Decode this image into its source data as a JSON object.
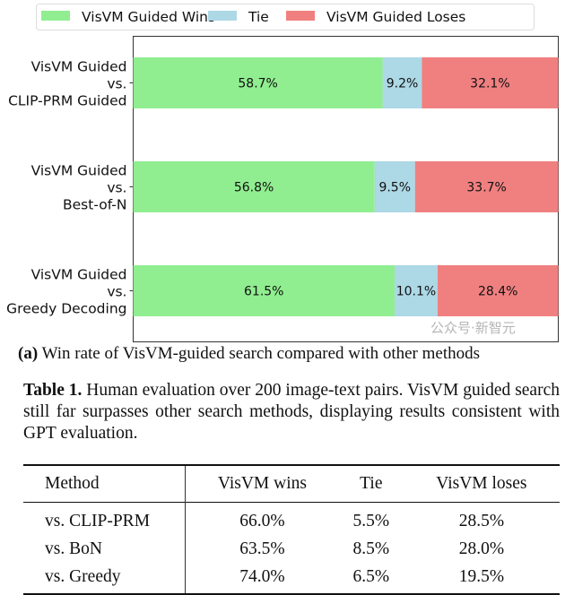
{
  "chart_data": {
    "type": "bar",
    "orientation": "horizontal",
    "stacked": true,
    "categories": [
      "VisVM Guided\nvs.\nCLIP-PRM Guided",
      "VisVM Guided\nvs.\nBest-of-N",
      "VisVM Guided\nvs.\nGreedy Decoding"
    ],
    "series": [
      {
        "name": "VisVM Guided Wins",
        "color": "#90ee90",
        "values": [
          58.7,
          56.8,
          61.5
        ],
        "labels": [
          "58.7%",
          "56.8%",
          "61.5%"
        ]
      },
      {
        "name": "Tie",
        "color": "#add8e6",
        "values": [
          9.2,
          9.5,
          10.1
        ],
        "labels": [
          "9.2%",
          "9.5%",
          "10.1%"
        ]
      },
      {
        "name": "VisVM Guided Loses",
        "color": "#f08080",
        "values": [
          32.1,
          33.7,
          28.4
        ],
        "labels": [
          "32.1%",
          "33.7%",
          "28.4%"
        ]
      }
    ],
    "xlim": [
      0,
      100
    ],
    "legend_position": "top",
    "grid": false
  },
  "caption_a": {
    "label": "(a)",
    "text": " Win rate of VisVM-guided search compared with other methods"
  },
  "table_caption": {
    "label": "Table 1.",
    "text": "  Human evaluation over 200 image-text pairs.  VisVM guided search still far surpasses other search methods, displaying results consistent with GPT evaluation."
  },
  "table": {
    "headers": [
      "Method",
      "VisVM wins",
      "Tie",
      "VisVM loses"
    ],
    "rows": [
      [
        "vs. CLIP-PRM",
        "66.0%",
        "5.5%",
        "28.5%"
      ],
      [
        "vs. BoN",
        "63.5%",
        "8.5%",
        "28.0%"
      ],
      [
        "vs. Greedy",
        "74.0%",
        "6.5%",
        "19.5%"
      ]
    ]
  },
  "watermark": "公众号·新智元"
}
